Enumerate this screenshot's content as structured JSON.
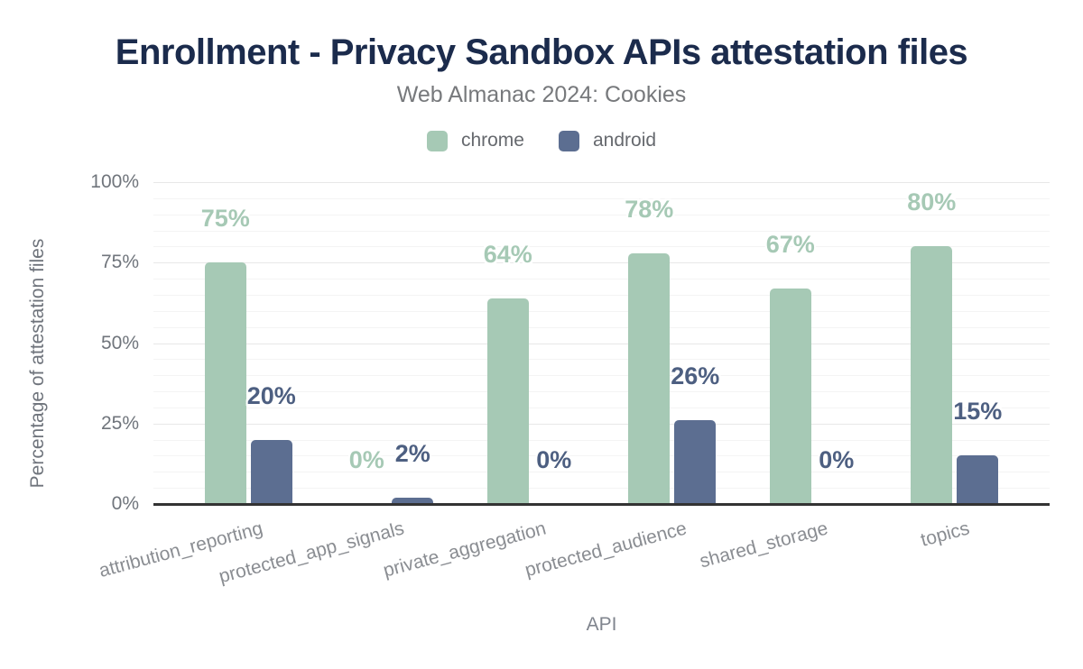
{
  "header": {
    "title": "Enrollment - Privacy Sandbox APIs attestation files",
    "subtitle": "Web Almanac 2024: Cookies"
  },
  "legend": {
    "items": [
      {
        "label": "chrome",
        "color": "#A6C9B5"
      },
      {
        "label": "android",
        "color": "#5C6E91"
      }
    ]
  },
  "axes": {
    "y_title": "Percentage of attestation files",
    "x_title": "API"
  },
  "colors": {
    "title": "#1B2B4C",
    "subtitle": "#77797C",
    "axis_line": "#333333",
    "grid_major": "#E8E8E8",
    "grid_minor": "#F4F4F4",
    "y_tick_label": "#70757C",
    "category_label": "#8A8D92"
  },
  "chart_data": {
    "type": "bar",
    "title": "Enrollment - Privacy Sandbox APIs attestation files",
    "subtitle": "Web Almanac 2024: Cookies",
    "xlabel": "API",
    "ylabel": "Percentage of attestation files",
    "categories": [
      "attribution_reporting",
      "protected_app_signals",
      "private_aggregation",
      "protected_audience",
      "shared_storage",
      "topics"
    ],
    "series": [
      {
        "name": "chrome",
        "color": "#A6C9B5",
        "label_color": "#A6C9B5",
        "values": [
          75,
          0,
          64,
          78,
          67,
          80
        ],
        "labels": [
          "75%",
          "0%",
          "64%",
          "78%",
          "67%",
          "80%"
        ]
      },
      {
        "name": "android",
        "color": "#5C6E91",
        "label_color": "#4D5F81",
        "values": [
          20,
          2,
          0,
          26,
          0,
          15
        ],
        "labels": [
          "20%",
          "2%",
          "0%",
          "26%",
          "0%",
          "15%"
        ]
      }
    ],
    "ylim": [
      0,
      100
    ],
    "yticks": [
      0,
      25,
      50,
      75,
      100
    ],
    "ytick_labels": [
      "0%",
      "25%",
      "50%",
      "75%",
      "100%"
    ],
    "minor_grid_step": 5,
    "grid": "horizontal",
    "legend_position": "top",
    "bar_value_labels": true
  }
}
